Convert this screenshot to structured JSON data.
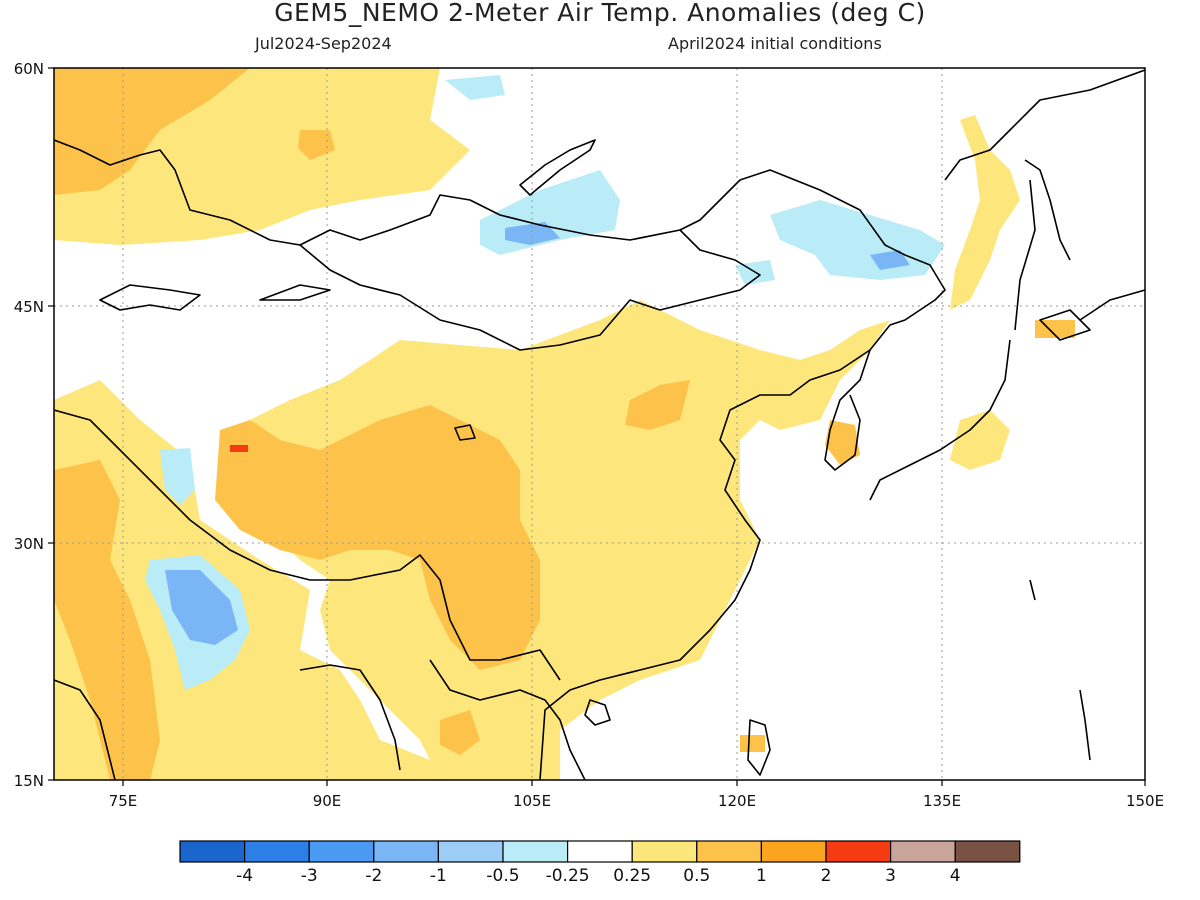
{
  "title": "GEM5_NEMO 2-Meter Air Temp. Anomalies (deg C)",
  "subtitle_left": "Jul2024-Sep2024",
  "subtitle_right": "April2024 initial conditions",
  "map": {
    "lon_range": [
      70,
      150
    ],
    "lat_range": [
      15,
      60
    ],
    "lat_ticks": [
      "60N",
      "45N",
      "30N",
      "15N"
    ],
    "lon_ticks": [
      "75E",
      "90E",
      "105E",
      "120E",
      "135E",
      "150E"
    ],
    "gridlines": true
  },
  "colorbar": {
    "colors": [
      "#1a66cc",
      "#2b7fe6",
      "#4a9af2",
      "#7ab6f5",
      "#9ecdf8",
      "#b9ecf7",
      "#ffffff",
      "#fde67c",
      "#fcc24a",
      "#fba51f",
      "#f53b12",
      "#c9a49a",
      "#7a5243"
    ],
    "labels": [
      "-4",
      "-3",
      "-2",
      "-1",
      "-0.5",
      "-0.25",
      "0.25",
      "0.5",
      "1",
      "2",
      "3",
      "4"
    ]
  }
}
